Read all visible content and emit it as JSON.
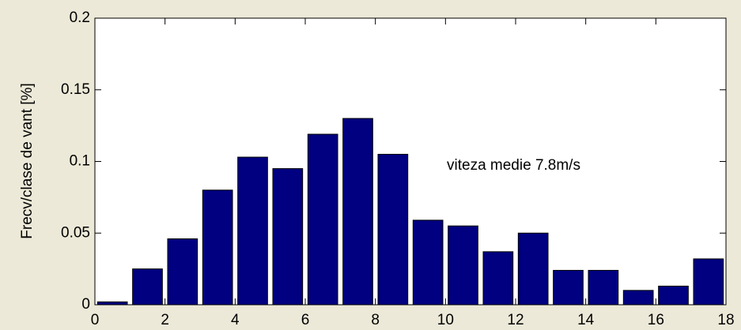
{
  "chart_data": {
    "type": "bar",
    "y_label": "Frecv/clase de vant [%]",
    "annotation": "viteza medie 7.8m/s",
    "x": [
      0.5,
      1.5,
      2.5,
      3.5,
      4.5,
      5.5,
      6.5,
      7.5,
      8.5,
      9.5,
      10.5,
      11.5,
      12.5,
      13.5,
      14.5,
      15.5,
      16.5,
      17.5
    ],
    "values": [
      0.002,
      0.025,
      0.046,
      0.08,
      0.103,
      0.095,
      0.119,
      0.13,
      0.105,
      0.059,
      0.055,
      0.037,
      0.05,
      0.024,
      0.024,
      0.01,
      0.013,
      0.032
    ],
    "color": "#000080",
    "xlim": [
      0,
      18
    ],
    "xticks": [
      0,
      2,
      4,
      6,
      8,
      10,
      12,
      14,
      16,
      18
    ],
    "ylim": [
      0,
      0.2
    ],
    "yticks": [
      0,
      0.05,
      0.1,
      0.15,
      0.2
    ]
  }
}
